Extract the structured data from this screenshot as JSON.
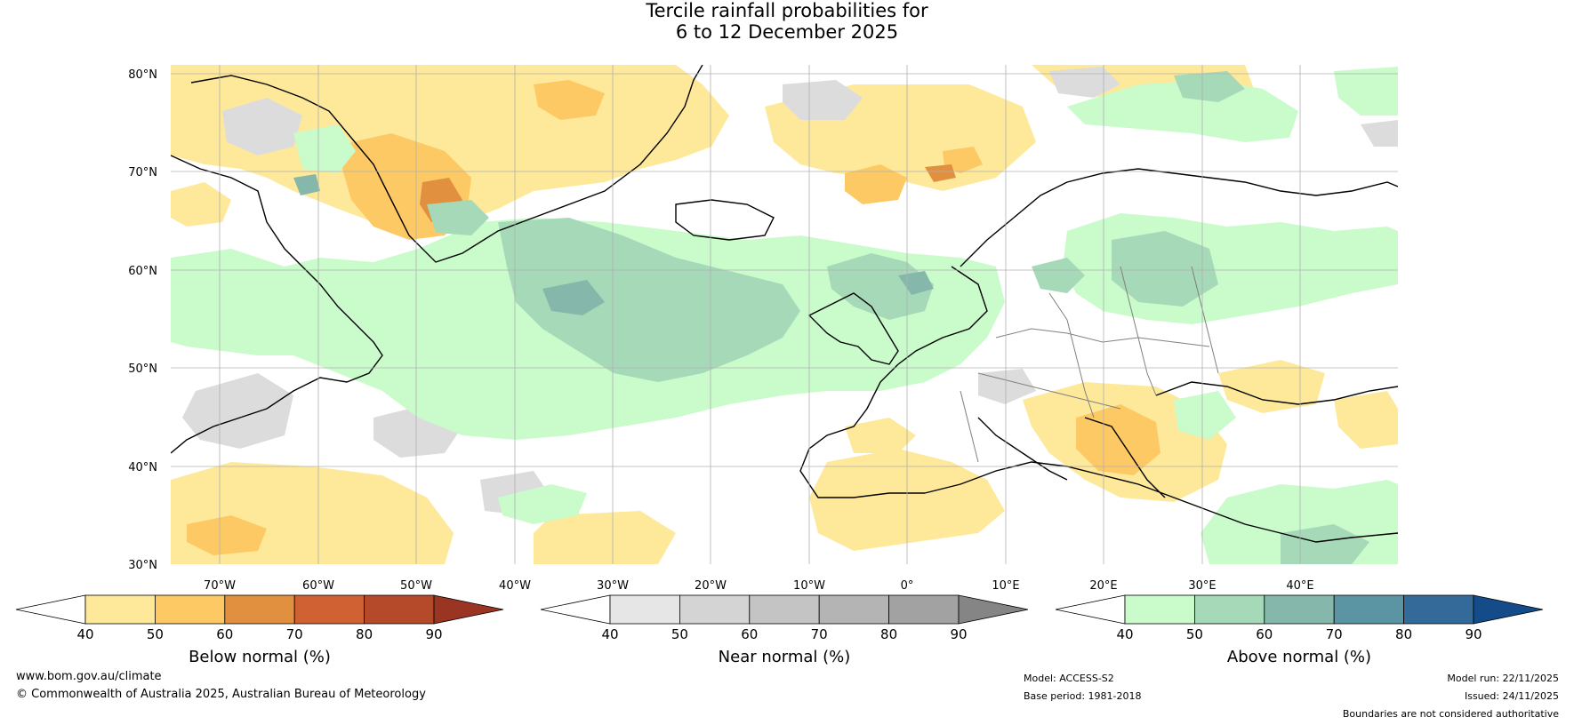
{
  "title_line1": "Tercile rainfall probabilities for",
  "title_line2": "6 to 12 December 2025",
  "lat_labels": [
    "80°N",
    "70°N",
    "60°N",
    "50°N",
    "40°N",
    "30°N"
  ],
  "lon_labels": [
    "70°W",
    "60°W",
    "50°W",
    "40°W",
    "30°W",
    "20°W",
    "10°W",
    "0°",
    "10°E",
    "20°E",
    "30°E",
    "40°E"
  ],
  "colorbars": [
    {
      "label": "Below normal (%)",
      "ticks": [
        "40",
        "50",
        "60",
        "70",
        "80",
        "90"
      ],
      "colors": [
        "#ffffff",
        "#fee99a",
        "#fdc965",
        "#e0903f",
        "#cf6132",
        "#b44a2a",
        "#9a3423"
      ]
    },
    {
      "label": "Near normal (%)",
      "ticks": [
        "40",
        "50",
        "60",
        "70",
        "80",
        "90"
      ],
      "colors": [
        "#ffffff",
        "#e6e6e6",
        "#d4d4d4",
        "#c4c4c4",
        "#b4b4b4",
        "#a2a2a2",
        "#858585"
      ]
    },
    {
      "label": "Above normal (%)",
      "ticks": [
        "40",
        "50",
        "60",
        "70",
        "80",
        "90"
      ],
      "colors": [
        "#ffffff",
        "#c9fbcb",
        "#a5d9b8",
        "#85b8ab",
        "#5b94a3",
        "#336a9a",
        "#134c88"
      ]
    }
  ],
  "footer": {
    "website": "www.bom.gov.au/climate",
    "copyright": "© Commonwealth of Australia 2025, Australian Bureau of Meteorology",
    "model": "Model: ACCESS-S2",
    "base_period": "Base period: 1981-2018",
    "model_run": "Model run: 22/11/2025",
    "issued": "Issued: 24/11/2025",
    "disclaimer": "Boundaries are not considered authoritative"
  }
}
